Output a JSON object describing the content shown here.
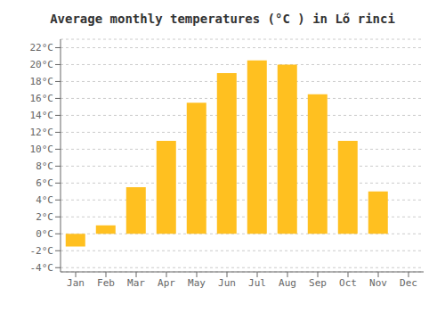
{
  "chart_data": {
    "type": "bar",
    "title": "Average monthly temperatures (°C ) in Lő rinci",
    "categories": [
      "Jan",
      "Feb",
      "Mar",
      "Apr",
      "May",
      "Jun",
      "Jul",
      "Aug",
      "Sep",
      "Oct",
      "Nov",
      "Dec"
    ],
    "values": [
      -1.5,
      1.0,
      5.5,
      11.0,
      15.5,
      19.0,
      20.5,
      20.0,
      16.5,
      11.0,
      5.0,
      0.0
    ],
    "color": "#FFC020",
    "ylim": [
      -4.5,
      23
    ],
    "yticks": [
      {
        "value": -4,
        "label": "-4°C"
      },
      {
        "value": -2,
        "label": "-2°C"
      },
      {
        "value": 0,
        "label": "0°C"
      },
      {
        "value": 2,
        "label": "2°C"
      },
      {
        "value": 4,
        "label": "4°C"
      },
      {
        "value": 6,
        "label": "6°C"
      },
      {
        "value": 8,
        "label": "8°C"
      },
      {
        "value": 10,
        "label": "10°C"
      },
      {
        "value": 12,
        "label": "12°C"
      },
      {
        "value": 14,
        "label": "14°C"
      },
      {
        "value": 16,
        "label": "16°C"
      },
      {
        "value": 18,
        "label": "18°C"
      },
      {
        "value": 20,
        "label": "20°C"
      },
      {
        "value": 22,
        "label": "22°C"
      }
    ],
    "grid": true
  }
}
